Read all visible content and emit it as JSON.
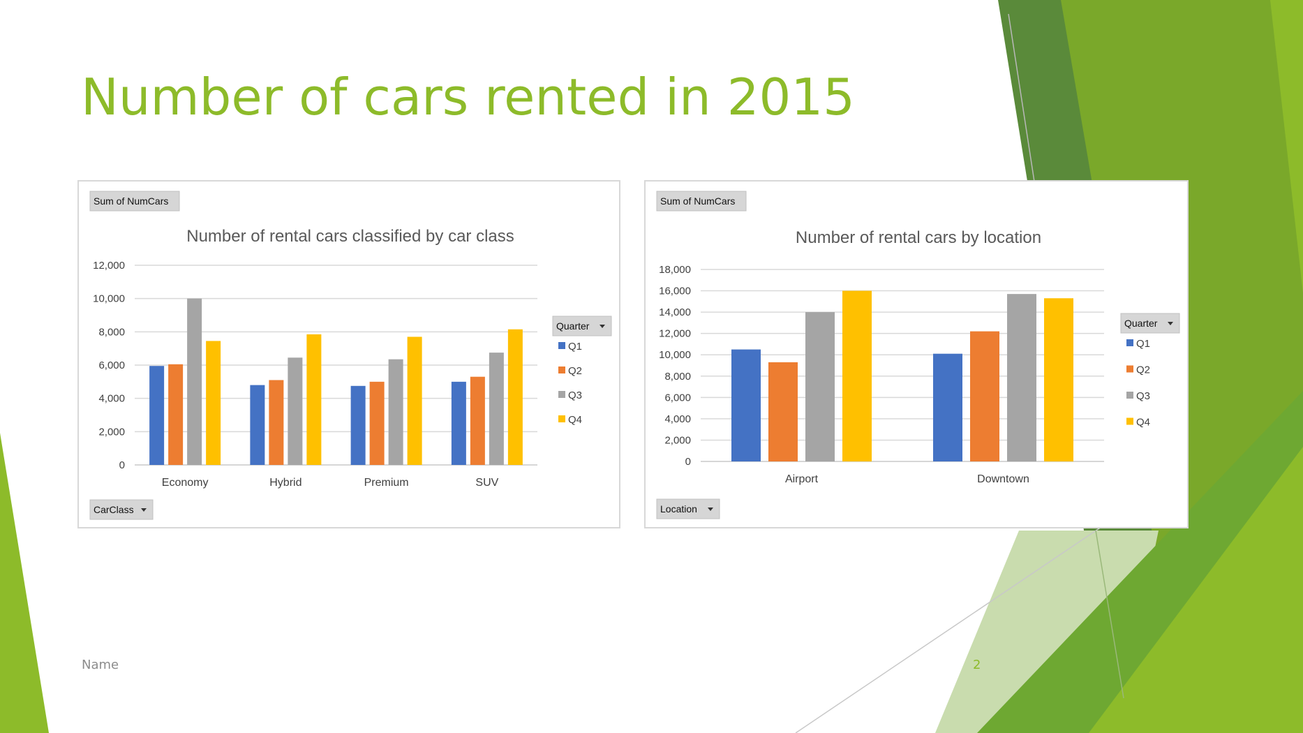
{
  "slide": {
    "title": "Number of cars rented in 2015",
    "footer_name": "Name",
    "page_number": "2"
  },
  "colors": {
    "title": "#8dbb2a",
    "accent_green": "#8dbb2a",
    "q1": "#4472c4",
    "q2": "#ed7d31",
    "q3": "#a5a5a5",
    "q4": "#ffc000"
  },
  "chart_data": [
    {
      "type": "bar",
      "title": "Number of rental cars classified by car class",
      "field_button": "Sum of NumCars",
      "axis_button": "CarClass",
      "legend_title": "Quarter",
      "legend_position": "right",
      "categories": [
        "Economy",
        "Hybrid",
        "Premium",
        "SUV"
      ],
      "series": [
        {
          "name": "Q1",
          "values": [
            5950,
            4800,
            4750,
            5000
          ]
        },
        {
          "name": "Q2",
          "values": [
            6050,
            5100,
            5000,
            5300
          ]
        },
        {
          "name": "Q3",
          "values": [
            10000,
            6450,
            6350,
            6750
          ]
        },
        {
          "name": "Q4",
          "values": [
            7450,
            7850,
            7700,
            8150
          ]
        }
      ],
      "ylim": [
        0,
        12000
      ],
      "yticks": [
        "0",
        "2,000",
        "4,000",
        "6,000",
        "8,000",
        "10,000",
        "12,000"
      ],
      "grid": true
    },
    {
      "type": "bar",
      "title": "Number of rental cars by location",
      "field_button": "Sum of NumCars",
      "axis_button": "Location",
      "legend_title": "Quarter",
      "legend_position": "right",
      "categories": [
        "Airport",
        "Downtown"
      ],
      "series": [
        {
          "name": "Q1",
          "values": [
            10500,
            10100
          ]
        },
        {
          "name": "Q2",
          "values": [
            9300,
            12200
          ]
        },
        {
          "name": "Q3",
          "values": [
            14000,
            15700
          ]
        },
        {
          "name": "Q4",
          "values": [
            16000,
            15300
          ]
        }
      ],
      "ylim": [
        0,
        18000
      ],
      "yticks": [
        "0",
        "2,000",
        "4,000",
        "6,000",
        "8,000",
        "10,000",
        "12,000",
        "14,000",
        "16,000",
        "18,000"
      ],
      "grid": true
    }
  ]
}
